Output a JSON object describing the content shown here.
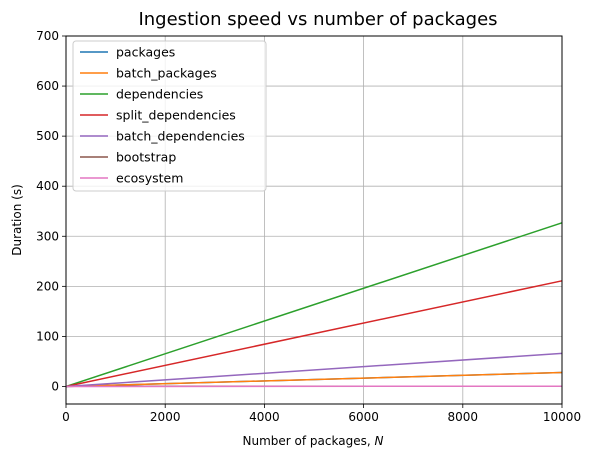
{
  "chart_data": {
    "type": "line",
    "title": "Ingestion speed vs number of packages",
    "xlabel": "Number of packages, ",
    "xlabel_var": "N",
    "ylabel": "Duration (s)",
    "xlim": [
      0,
      10000
    ],
    "ylim": [
      -35,
      700
    ],
    "xticks": [
      0,
      2000,
      4000,
      6000,
      8000,
      10000
    ],
    "yticks": [
      0,
      100,
      200,
      300,
      400,
      500,
      600,
      700
    ],
    "grid": true,
    "legend_position": "top-left",
    "series": [
      {
        "name": "packages",
        "color": "#1f77b4",
        "x": [
          0,
          10000
        ],
        "y": [
          0,
          28
        ]
      },
      {
        "name": "batch_packages",
        "color": "#ff7f0e",
        "x": [
          0,
          10000
        ],
        "y": [
          0,
          28
        ]
      },
      {
        "name": "dependencies",
        "color": "#2ca02c",
        "x": [
          0,
          10000
        ],
        "y": [
          0,
          327
        ]
      },
      {
        "name": "split_dependencies",
        "color": "#d62728",
        "x": [
          0,
          10000
        ],
        "y": [
          0,
          211
        ]
      },
      {
        "name": "batch_dependencies",
        "color": "#9467bd",
        "x": [
          0,
          10000
        ],
        "y": [
          0,
          66
        ]
      },
      {
        "name": "bootstrap",
        "color": "#8c564b",
        "x": [
          1000,
          10000
        ],
        "y": [
          0.3,
          0.5
        ]
      },
      {
        "name": "ecosystem",
        "color": "#e377c2",
        "x": [
          0,
          10000
        ],
        "y": [
          0,
          0.5
        ]
      }
    ]
  }
}
